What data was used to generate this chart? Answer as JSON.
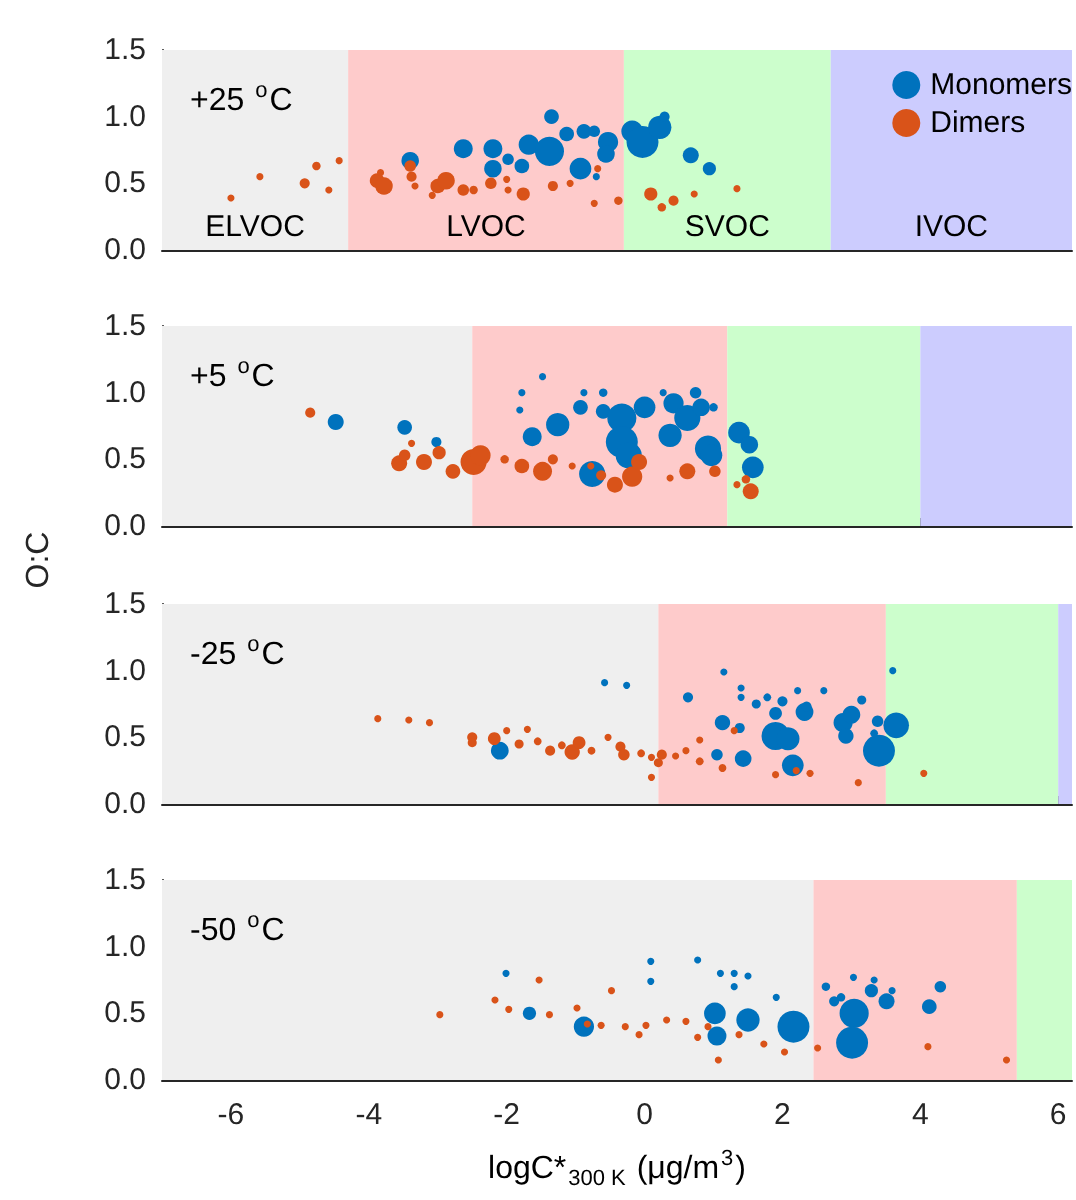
{
  "chart_data": [
    {
      "type": "bubble",
      "title": "+25 $^{o}$C",
      "xlim": [
        -7,
        6.2
      ],
      "ylim": [
        0,
        1.5
      ],
      "xticks": [
        -6,
        -4,
        -2,
        0,
        2,
        4,
        6
      ],
      "yticks": [
        {
          "value": 0,
          "label": "0.0"
        },
        {
          "value": 0.5,
          "label": "0.5"
        },
        {
          "value": 1,
          "label": "1.0"
        },
        {
          "value": 1.5,
          "label": "1.5"
        }
      ],
      "tick_labels": "y",
      "grid": false,
      "marker": "circle",
      "legend": "top right",
      "bands": [
        {
          "axis": "x",
          "from": -7,
          "to": -4.3,
          "label": "ELVOC",
          "color": "#efefef"
        },
        {
          "axis": "x",
          "from": -4.3,
          "to": -0.3,
          "label": "LVOC",
          "color": "#fecbcb"
        },
        {
          "axis": "x",
          "from": -0.3,
          "to": 2.7,
          "label": "SVOC",
          "color": "#ccfecc"
        },
        {
          "axis": "x",
          "from": 2.7,
          "to": 6.2,
          "label": "IVOC",
          "color": "#ccccfe"
        }
      ],
      "series": [
        {
          "name": "Monomers",
          "color": "#0072bd",
          "x": [
            -3.4,
            -2.63,
            -2.2,
            -2.2,
            -1.98,
            -1.78,
            -1.68,
            -1.35,
            -1.38,
            -1.13,
            -0.93,
            -0.88,
            -0.73,
            -0.53,
            -0.56,
            -0.18,
            -0.03,
            0.22,
            0.29,
            0.67,
            0.94,
            -0.7
          ],
          "values": [
            0.67,
            0.76,
            0.76,
            0.61,
            0.68,
            0.63,
            0.79,
            1.0,
            0.74,
            0.87,
            0.61,
            0.89,
            0.89,
            0.81,
            0.72,
            0.89,
            0.81,
            0.92,
            1.0,
            0.71,
            0.61,
            0.55
          ],
          "sizes": [
            0.3,
            0.35,
            0.35,
            0.3,
            0.13,
            0.21,
            0.4,
            0.21,
            0.83,
            0.21,
            0.46,
            0.21,
            0.13,
            0.4,
            0.3,
            0.46,
            1,
            0.53,
            0.1,
            0.25,
            0.17,
            0.05
          ]
        },
        {
          "name": "Dimers",
          "color": "#d95319",
          "x": [
            -6.0,
            -5.58,
            -4.93,
            -4.76,
            -4.58,
            -4.43,
            -3.88,
            -3.78,
            -3.83,
            -3.4,
            -3.38,
            -3.33,
            -3.0,
            -2.88,
            -3.08,
            -2.63,
            -2.48,
            -2.23,
            -1.98,
            -1.76,
            -2.0,
            -1.33,
            -1.08,
            -0.73,
            -0.38,
            -0.68,
            0.09,
            0.25,
            0.42,
            0.72,
            1.34
          ],
          "values": [
            0.39,
            0.55,
            0.5,
            0.63,
            0.45,
            0.67,
            0.52,
            0.48,
            0.58,
            0.63,
            0.55,
            0.48,
            0.48,
            0.52,
            0.41,
            0.45,
            0.45,
            0.5,
            0.45,
            0.42,
            0.53,
            0.48,
            0.5,
            0.35,
            0.37,
            0.61,
            0.42,
            0.32,
            0.37,
            0.42,
            0.46
          ],
          "sizes": [
            0.05,
            0.05,
            0.1,
            0.07,
            0.05,
            0.05,
            0.21,
            0.3,
            0.05,
            0.13,
            0.1,
            0.05,
            0.21,
            0.3,
            0.05,
            0.13,
            0.07,
            0.13,
            0.05,
            0.17,
            0.05,
            0.1,
            0.05,
            0.05,
            0.07,
            0.05,
            0.17,
            0.07,
            0.1,
            0.05,
            0.05
          ]
        }
      ]
    },
    {
      "type": "bubble",
      "title": "+5 $^{o}$C",
      "ylabel": "O:C",
      "xlim": [
        -7,
        6.2
      ],
      "ylim": [
        0,
        1.5
      ],
      "xticks": [
        -6,
        -4,
        -2,
        0,
        2,
        4,
        6
      ],
      "yticks": [
        {
          "value": 0,
          "label": "0.0"
        },
        {
          "value": 0.5,
          "label": "0.5"
        },
        {
          "value": 1,
          "label": "1.0"
        },
        {
          "value": 1.5,
          "label": "1.5"
        }
      ],
      "tick_labels": "y",
      "grid": false,
      "marker": "circle",
      "bands": [
        {
          "axis": "x",
          "from": -7,
          "to": -2.5,
          "color": "#efefef"
        },
        {
          "axis": "x",
          "from": -2.5,
          "to": 1.2,
          "color": "#fecbcb"
        },
        {
          "axis": "x",
          "from": 1.2,
          "to": 4.0,
          "color": "#ccfecc"
        },
        {
          "axis": "x",
          "from": 4.0,
          "to": 6.2,
          "color": "#ccccfe"
        }
      ],
      "series": [
        {
          "color": "#0072bd",
          "x": [
            -4.48,
            -3.48,
            -3.02,
            -1.63,
            -1.26,
            -1.48,
            -1.78,
            -1.81,
            -0.93,
            -0.88,
            -0.6,
            -0.6,
            -0.33,
            -0.33,
            -0.23,
            0.0,
            -0.76,
            0.37,
            0.42,
            0.62,
            0.74,
            0.82,
            0.92,
            0.97,
            1.0,
            1.37,
            1.52,
            1.57,
            0.27
          ],
          "values": [
            0.78,
            0.74,
            0.63,
            0.67,
            0.76,
            1.12,
            1.0,
            0.87,
            0.89,
            1.0,
            1.0,
            0.86,
            0.81,
            0.63,
            0.53,
            0.89,
            0.39,
            0.68,
            0.92,
            0.81,
            1.0,
            0.89,
            0.58,
            0.53,
            0.89,
            0.7,
            0.61,
            0.44,
            1.0
          ],
          "sizes": [
            0.25,
            0.21,
            0.1,
            0.35,
            0.53,
            0.05,
            0.05,
            0.05,
            0.21,
            0.05,
            0.07,
            0.21,
            0.83,
            1,
            0.67,
            0.46,
            0.67,
            0.53,
            0.4,
            0.67,
            0.13,
            0.3,
            0.67,
            0.46,
            0.07,
            0.46,
            0.3,
            0.46,
            0.05
          ]
        },
        {
          "color": "#d95319",
          "x": [
            -4.85,
            -3.56,
            -3.48,
            -3.2,
            -2.98,
            -2.78,
            -2.48,
            -2.38,
            -2.03,
            -1.78,
            -1.48,
            -1.33,
            -1.05,
            -0.78,
            -0.63,
            -0.43,
            -0.18,
            -0.08,
            0.37,
            0.62,
            1.02,
            1.34,
            1.47,
            1.54,
            -3.38
          ],
          "values": [
            0.85,
            0.47,
            0.53,
            0.48,
            0.55,
            0.41,
            0.48,
            0.53,
            0.5,
            0.45,
            0.41,
            0.5,
            0.45,
            0.45,
            0.38,
            0.31,
            0.37,
            0.48,
            0.36,
            0.41,
            0.41,
            0.31,
            0.35,
            0.26,
            0.62
          ],
          "sizes": [
            0.1,
            0.25,
            0.13,
            0.25,
            0.17,
            0.21,
            0.67,
            0.4,
            0.07,
            0.21,
            0.35,
            0.1,
            0.05,
            0.05,
            0.1,
            0.25,
            0.4,
            0.25,
            0.05,
            0.25,
            0.13,
            0.05,
            0.07,
            0.25,
            0.05
          ]
        }
      ]
    },
    {
      "type": "bubble",
      "title": "-25 $^{o}$C",
      "xlim": [
        -7,
        6.2
      ],
      "ylim": [
        0,
        1.5
      ],
      "xticks": [
        -6,
        -4,
        -2,
        0,
        2,
        4,
        6
      ],
      "yticks": [
        {
          "value": 0,
          "label": "0.0"
        },
        {
          "value": 0.5,
          "label": "0.5"
        },
        {
          "value": 1,
          "label": "1.0"
        },
        {
          "value": 1.5,
          "label": "1.5"
        }
      ],
      "tick_labels": "y",
      "grid": false,
      "marker": "circle",
      "bands": [
        {
          "axis": "x",
          "from": -7,
          "to": 0.2,
          "color": "#efefef"
        },
        {
          "axis": "x",
          "from": 0.2,
          "to": 3.5,
          "color": "#fecbcb"
        },
        {
          "axis": "x",
          "from": 3.5,
          "to": 6.0,
          "color": "#ccfecc"
        },
        {
          "axis": "x",
          "from": 6.0,
          "to": 6.2,
          "color": "#ccccfe"
        }
      ],
      "series": [
        {
          "color": "#0072bd",
          "x": [
            -2.1,
            -0.58,
            -0.26,
            0.63,
            1.13,
            1.05,
            1.38,
            1.43,
            1.15,
            1.4,
            1.4,
            1.62,
            1.78,
            1.9,
            1.9,
            2.08,
            2.15,
            2.0,
            2.22,
            2.32,
            2.35,
            2.6,
            2.88,
            2.92,
            3.0,
            3.15,
            3.38,
            3.4,
            3.65,
            3.6,
            3.33
          ],
          "values": [
            0.4,
            0.91,
            0.89,
            0.8,
            0.61,
            0.37,
            0.57,
            0.34,
            0.99,
            0.87,
            0.8,
            0.75,
            0.8,
            0.68,
            0.51,
            0.49,
            0.29,
            0.77,
            0.85,
            0.69,
            0.73,
            0.85,
            0.61,
            0.51,
            0.67,
            0.78,
            0.62,
            0.4,
            0.59,
            1.0,
            0.53
          ],
          "sizes": [
            0.31,
            0.05,
            0.05,
            0.1,
            0.23,
            0.13,
            0.1,
            0.27,
            0.05,
            0.05,
            0.05,
            0.08,
            0.06,
            0.16,
            0.77,
            0.52,
            0.46,
            0.1,
            0.05,
            0.31,
            0.1,
            0.05,
            0.36,
            0.23,
            0.31,
            0.08,
            0.13,
            1,
            0.64,
            0.05,
            0.06
          ]
        },
        {
          "color": "#d95319",
          "x": [
            -3.87,
            -3.42,
            -3.12,
            -2.5,
            -2.5,
            -2.18,
            -2.0,
            -1.82,
            -1.7,
            -1.55,
            -1.37,
            -1.2,
            -1.05,
            -0.95,
            -0.77,
            -0.53,
            -0.35,
            -0.3,
            -0.05,
            0.1,
            0.25,
            0.2,
            0.45,
            0.6,
            0.8,
            0.8,
            1.13,
            1.3,
            1.9,
            2.2,
            2.4,
            3.1,
            4.05,
            0.1
          ],
          "values": [
            0.64,
            0.63,
            0.61,
            0.5,
            0.46,
            0.49,
            0.55,
            0.45,
            0.56,
            0.47,
            0.4,
            0.44,
            0.39,
            0.46,
            0.4,
            0.5,
            0.43,
            0.37,
            0.38,
            0.35,
            0.37,
            0.31,
            0.36,
            0.4,
            0.32,
            0.48,
            0.27,
            0.55,
            0.22,
            0.25,
            0.23,
            0.16,
            0.23,
            0.2
          ],
          "sizes": [
            0.05,
            0.05,
            0.05,
            0.1,
            0.08,
            0.16,
            0.05,
            0.08,
            0.05,
            0.06,
            0.1,
            0.06,
            0.23,
            0.16,
            0.06,
            0.05,
            0.1,
            0.13,
            0.06,
            0.05,
            0.1,
            0.08,
            0.05,
            0.05,
            0.06,
            0.05,
            0.06,
            0.05,
            0.05,
            0.05,
            0.05,
            0.05,
            0.05,
            0.05
          ]
        }
      ]
    },
    {
      "type": "bubble",
      "title": "-50 $^{o}$C",
      "xlabel": "logC*$_{300 K}$ (μg/m$^{3}$)",
      "xlim": [
        -7,
        6.2
      ],
      "ylim": [
        0,
        1.5
      ],
      "xticks": [
        -6,
        -4,
        -2,
        0,
        2,
        4,
        6
      ],
      "yticks": [
        {
          "value": 0,
          "label": "0.0"
        },
        {
          "value": 0.5,
          "label": "0.5"
        },
        {
          "value": 1,
          "label": "1.0"
        },
        {
          "value": 1.5,
          "label": "1.5"
        }
      ],
      "grid": false,
      "marker": "circle",
      "bands": [
        {
          "axis": "x",
          "from": -7,
          "to": 2.45,
          "color": "#efefef"
        },
        {
          "axis": "x",
          "from": 2.45,
          "to": 5.4,
          "color": "#fecbcb"
        },
        {
          "axis": "x",
          "from": 5.4,
          "to": 6.2,
          "color": "#ccfecc"
        }
      ],
      "series": [
        {
          "color": "#0072bd",
          "x": [
            -2.01,
            -1.67,
            -0.88,
            0.09,
            0.09,
            0.77,
            1.02,
            1.05,
            1.1,
            1.3,
            1.3,
            1.5,
            1.5,
            1.91,
            2.16,
            2.63,
            2.75,
            2.85,
            3.04,
            3.01,
            3.03,
            3.29,
            3.33,
            3.51,
            3.59,
            4.13,
            4.29
          ],
          "values": [
            0.8,
            0.5,
            0.4,
            0.89,
            0.74,
            0.9,
            0.5,
            0.33,
            0.8,
            0.8,
            0.7,
            0.78,
            0.45,
            0.62,
            0.4,
            0.7,
            0.59,
            0.62,
            0.5,
            0.28,
            0.77,
            0.67,
            0.75,
            0.59,
            0.67,
            0.55,
            0.7
          ],
          "sizes": [
            0.05,
            0.17,
            0.4,
            0.05,
            0.05,
            0.05,
            0.46,
            0.35,
            0.05,
            0.05,
            0.05,
            0.05,
            0.53,
            0.05,
            1,
            0.07,
            0.1,
            0.07,
            0.83,
            1,
            0.05,
            0.17,
            0.05,
            0.25,
            0.05,
            0.21,
            0.13
          ]
        },
        {
          "color": "#d95319",
          "x": [
            -2.97,
            -2.17,
            -1.97,
            -1.53,
            -1.38,
            -0.98,
            -0.83,
            -0.63,
            -0.48,
            -0.28,
            -0.08,
            0.02,
            0.32,
            0.6,
            0.77,
            0.92,
            1.07,
            1.37,
            1.73,
            2.03,
            2.51,
            4.11,
            5.25
          ],
          "values": [
            0.49,
            0.6,
            0.53,
            0.75,
            0.49,
            0.54,
            0.42,
            0.41,
            0.67,
            0.4,
            0.34,
            0.41,
            0.45,
            0.44,
            0.32,
            0.4,
            0.15,
            0.34,
            0.27,
            0.21,
            0.24,
            0.25,
            0.15
          ],
          "sizes": [
            0.05,
            0.05,
            0.05,
            0.05,
            0.05,
            0.05,
            0.05,
            0.05,
            0.05,
            0.05,
            0.05,
            0.05,
            0.05,
            0.05,
            0.05,
            0.05,
            0.05,
            0.05,
            0.05,
            0.05,
            0.05,
            0.05,
            0.05
          ]
        }
      ]
    }
  ]
}
